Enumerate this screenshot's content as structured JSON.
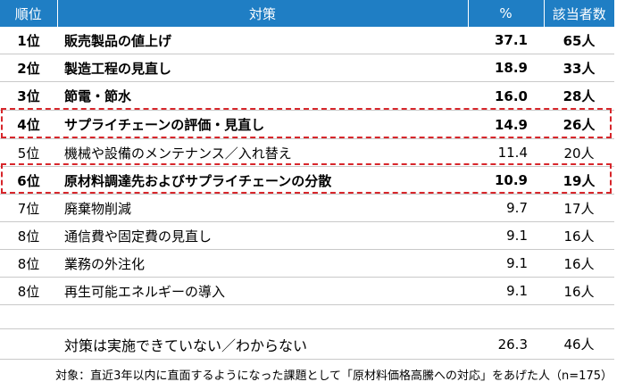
{
  "table": {
    "headers": {
      "rank": "順位",
      "measure": "対策",
      "percent": "%",
      "count": "該当者数"
    },
    "rows": [
      {
        "rank": "1位",
        "measure": "販売製品の値上げ",
        "percent": "37.1",
        "count": "65人",
        "bold": true
      },
      {
        "rank": "2位",
        "measure": "製造工程の見直し",
        "percent": "18.9",
        "count": "33人",
        "bold": true
      },
      {
        "rank": "3位",
        "measure": "節電・節水",
        "percent": "16.0",
        "count": "28人",
        "bold": true
      },
      {
        "rank": "4位",
        "measure": "サプライチェーンの評価・見直し",
        "percent": "14.9",
        "count": "26人",
        "bold": true,
        "highlight": true
      },
      {
        "rank": "5位",
        "measure": "機械や設備のメンテナンス／入れ替え",
        "percent": "11.4",
        "count": "20人",
        "bold": false
      },
      {
        "rank": "6位",
        "measure": "原材料調達先およびサプライチェーンの分散",
        "percent": "10.9",
        "count": "19人",
        "bold": true,
        "highlight": true
      },
      {
        "rank": "7位",
        "measure": "廃棄物削減",
        "percent": "9.7",
        "count": "17人",
        "bold": false
      },
      {
        "rank": "8位",
        "measure": "通信費や固定費の見直し",
        "percent": "9.1",
        "count": "16人",
        "bold": false
      },
      {
        "rank": "8位",
        "measure": "業務の外注化",
        "percent": "9.1",
        "count": "16人",
        "bold": false
      },
      {
        "rank": "8位",
        "measure": "再生可能エネルギーの導入",
        "percent": "9.1",
        "count": "16人",
        "bold": false
      }
    ],
    "no_measure_row": {
      "measure": "対策は実施できていない／わからない",
      "percent": "26.3",
      "count": "46人"
    }
  },
  "footnote": "対象：直近3年以内に直面するようになった課題として「原材料価格高騰への対応」をあげた人（n=175）",
  "colors": {
    "header_bg": "#1f7ec4",
    "header_text": "#ffffff",
    "highlight_border": "#d7262b",
    "grid_line": "#c9c9c9"
  }
}
